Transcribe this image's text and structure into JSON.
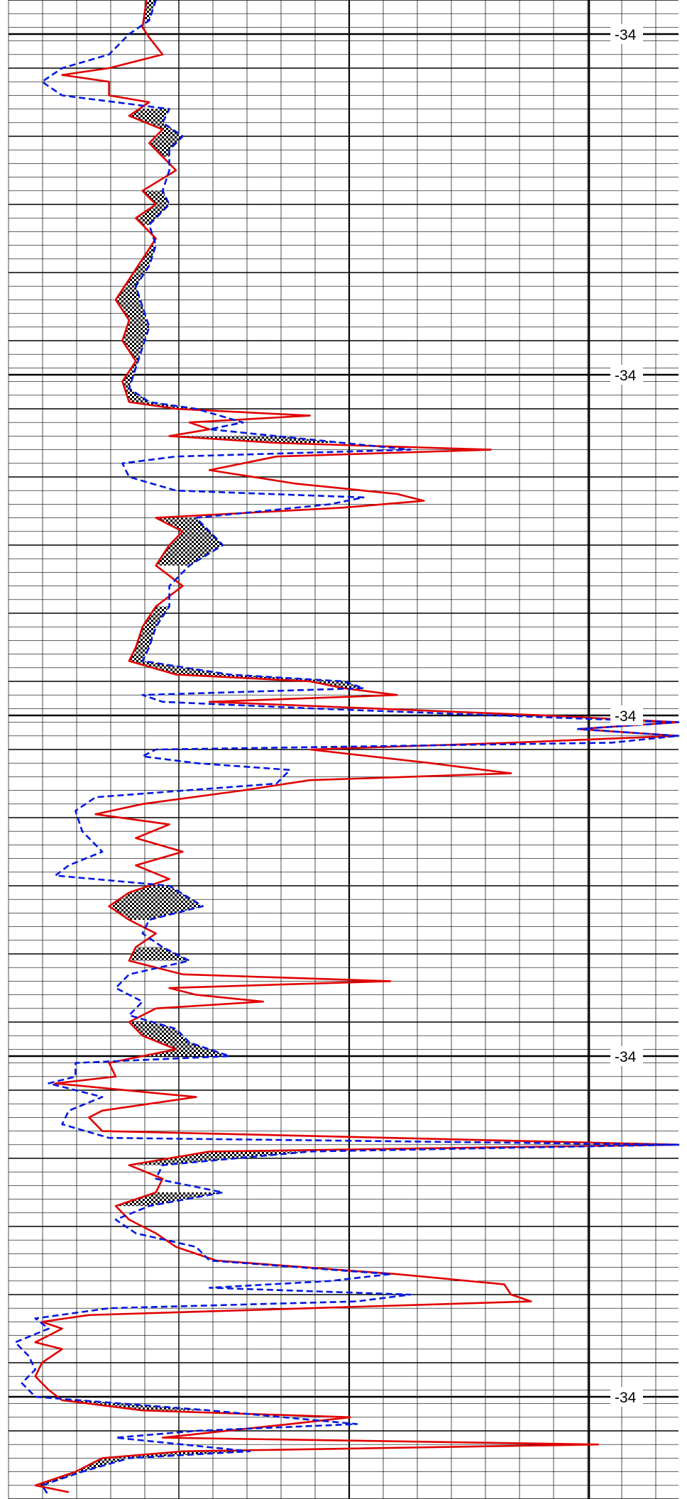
{
  "chart_data": {
    "type": "line",
    "title": "",
    "xlabel": "",
    "ylabel": "",
    "grid": true,
    "depth_tick_labels": [
      "-34",
      "-34",
      "-34",
      "-34",
      "-34"
    ],
    "depth_tick_depths": [
      0.5,
      5.5,
      10.5,
      15.5,
      20.5
    ],
    "depth_range": [
      0,
      22
    ],
    "curve_range": [
      0,
      100
    ],
    "series": [
      {
        "style": "solid",
        "color": "#e00000",
        "points": [
          [
            0,
            20.6
          ],
          [
            0.4,
            20
          ],
          [
            0.55,
            21
          ],
          [
            0.8,
            23
          ],
          [
            1.0,
            15
          ],
          [
            1.1,
            8
          ],
          [
            1.2,
            15
          ],
          [
            1.4,
            15
          ],
          [
            1.5,
            21
          ],
          [
            1.7,
            18
          ],
          [
            1.9,
            23
          ],
          [
            2.1,
            21
          ],
          [
            2.3,
            23
          ],
          [
            2.5,
            25
          ],
          [
            2.8,
            20
          ],
          [
            3.0,
            22
          ],
          [
            3.2,
            19
          ],
          [
            3.5,
            22
          ],
          [
            3.8,
            20
          ],
          [
            4.1,
            18
          ],
          [
            4.4,
            16
          ],
          [
            4.7,
            18
          ],
          [
            5.0,
            17
          ],
          [
            5.3,
            19
          ],
          [
            5.6,
            17
          ],
          [
            5.9,
            18
          ],
          [
            6.0,
            25
          ],
          [
            6.1,
            45
          ],
          [
            6.2,
            27
          ],
          [
            6.3,
            30
          ],
          [
            6.4,
            24
          ],
          [
            6.5,
            40
          ],
          [
            6.6,
            72
          ],
          [
            6.7,
            40
          ],
          [
            6.9,
            30
          ],
          [
            7.1,
            43
          ],
          [
            7.25,
            58
          ],
          [
            7.35,
            62
          ],
          [
            7.45,
            50
          ],
          [
            7.6,
            22
          ],
          [
            7.8,
            26
          ],
          [
            8.0,
            24
          ],
          [
            8.3,
            22
          ],
          [
            8.6,
            26
          ],
          [
            8.9,
            22
          ],
          [
            9.2,
            20
          ],
          [
            9.5,
            19
          ],
          [
            9.7,
            18
          ],
          [
            9.9,
            25
          ],
          [
            10.0,
            45
          ],
          [
            10.1,
            50
          ],
          [
            10.2,
            58
          ],
          [
            10.3,
            30
          ],
          [
            10.5,
            80
          ],
          [
            10.6,
            100
          ],
          [
            10.7,
            85
          ],
          [
            10.8,
            100
          ],
          [
            10.9,
            75
          ],
          [
            11.0,
            45
          ],
          [
            11.2,
            63
          ],
          [
            11.35,
            75
          ],
          [
            11.45,
            45
          ],
          [
            11.6,
            35
          ],
          [
            11.8,
            20
          ],
          [
            11.95,
            13
          ],
          [
            12.1,
            24
          ],
          [
            12.3,
            19
          ],
          [
            12.5,
            26
          ],
          [
            12.7,
            19
          ],
          [
            12.9,
            24
          ],
          [
            13.1,
            18
          ],
          [
            13.3,
            15
          ],
          [
            13.5,
            18
          ],
          [
            13.7,
            22
          ],
          [
            13.9,
            19
          ],
          [
            14.1,
            18
          ],
          [
            14.3,
            26
          ],
          [
            14.4,
            57
          ],
          [
            14.5,
            24
          ],
          [
            14.6,
            28
          ],
          [
            14.7,
            38
          ],
          [
            14.8,
            22
          ],
          [
            15.0,
            18
          ],
          [
            15.2,
            20
          ],
          [
            15.4,
            25
          ],
          [
            15.6,
            15
          ],
          [
            15.8,
            16
          ],
          [
            15.9,
            7
          ],
          [
            16.1,
            28
          ],
          [
            16.3,
            14
          ],
          [
            16.4,
            12
          ],
          [
            16.6,
            14
          ],
          [
            16.8,
            100
          ],
          [
            16.9,
            30
          ],
          [
            17.1,
            18
          ],
          [
            17.3,
            23
          ],
          [
            17.5,
            22
          ],
          [
            17.7,
            16
          ],
          [
            17.9,
            18
          ],
          [
            18.1,
            22
          ],
          [
            18.3,
            25
          ],
          [
            18.5,
            31
          ],
          [
            18.7,
            58
          ],
          [
            18.85,
            74
          ],
          [
            19.0,
            75
          ],
          [
            19.1,
            78
          ],
          [
            19.2,
            45
          ],
          [
            19.3,
            12
          ],
          [
            19.4,
            5
          ],
          [
            19.5,
            8
          ],
          [
            19.7,
            4
          ],
          [
            19.8,
            8
          ],
          [
            20.0,
            5
          ],
          [
            20.2,
            4
          ],
          [
            20.4,
            6
          ],
          [
            20.55,
            8
          ],
          [
            20.7,
            20
          ],
          [
            20.8,
            51
          ],
          [
            20.9,
            42
          ],
          [
            21.1,
            23
          ],
          [
            21.2,
            88
          ],
          [
            21.3,
            26
          ],
          [
            21.4,
            14
          ],
          [
            21.6,
            10
          ],
          [
            21.8,
            4
          ],
          [
            21.9,
            9
          ]
        ]
      },
      {
        "style": "dashed",
        "color": "#0018e0",
        "points": [
          [
            0,
            22
          ],
          [
            0.3,
            21
          ],
          [
            0.5,
            18
          ],
          [
            0.8,
            15
          ],
          [
            1.0,
            8
          ],
          [
            1.2,
            5
          ],
          [
            1.4,
            8
          ],
          [
            1.6,
            24
          ],
          [
            1.8,
            23
          ],
          [
            2.0,
            26
          ],
          [
            2.2,
            24
          ],
          [
            2.5,
            24
          ],
          [
            2.8,
            23
          ],
          [
            3.0,
            24
          ],
          [
            3.3,
            21
          ],
          [
            3.6,
            22
          ],
          [
            3.9,
            21
          ],
          [
            4.2,
            19
          ],
          [
            4.5,
            20
          ],
          [
            4.8,
            21
          ],
          [
            5.1,
            20
          ],
          [
            5.4,
            19
          ],
          [
            5.7,
            18
          ],
          [
            5.9,
            21
          ],
          [
            6.0,
            28
          ],
          [
            6.2,
            35
          ],
          [
            6.3,
            30
          ],
          [
            6.5,
            50
          ],
          [
            6.6,
            60
          ],
          [
            6.7,
            25
          ],
          [
            6.8,
            17
          ],
          [
            7.0,
            18
          ],
          [
            7.2,
            25
          ],
          [
            7.3,
            53
          ],
          [
            7.4,
            48
          ],
          [
            7.6,
            28
          ],
          [
            7.8,
            30
          ],
          [
            8.0,
            32
          ],
          [
            8.3,
            27
          ],
          [
            8.6,
            24
          ],
          [
            8.9,
            24
          ],
          [
            9.2,
            22
          ],
          [
            9.5,
            21
          ],
          [
            9.7,
            20
          ],
          [
            9.9,
            33
          ],
          [
            10.0,
            50
          ],
          [
            10.1,
            53
          ],
          [
            10.2,
            20
          ],
          [
            10.3,
            23
          ],
          [
            10.4,
            46
          ],
          [
            10.6,
            100
          ],
          [
            10.7,
            85
          ],
          [
            10.8,
            100
          ],
          [
            10.9,
            90
          ],
          [
            11.0,
            22
          ],
          [
            11.1,
            20
          ],
          [
            11.2,
            28
          ],
          [
            11.3,
            42
          ],
          [
            11.5,
            40
          ],
          [
            11.7,
            13
          ],
          [
            11.9,
            10
          ],
          [
            12.2,
            11
          ],
          [
            12.5,
            14
          ],
          [
            12.7,
            9
          ],
          [
            12.85,
            7
          ],
          [
            13.0,
            24
          ],
          [
            13.3,
            29
          ],
          [
            13.5,
            21
          ],
          [
            13.7,
            20
          ],
          [
            13.9,
            23
          ],
          [
            14.1,
            27
          ],
          [
            14.3,
            18
          ],
          [
            14.5,
            16
          ],
          [
            14.7,
            20
          ],
          [
            14.9,
            18
          ],
          [
            15.1,
            25
          ],
          [
            15.3,
            27
          ],
          [
            15.5,
            33
          ],
          [
            15.6,
            10
          ],
          [
            15.8,
            10
          ],
          [
            15.9,
            6
          ],
          [
            16.1,
            14
          ],
          [
            16.3,
            9
          ],
          [
            16.5,
            8
          ],
          [
            16.7,
            15
          ],
          [
            16.8,
            100
          ],
          [
            16.9,
            45
          ],
          [
            17.1,
            23
          ],
          [
            17.3,
            22
          ],
          [
            17.5,
            32
          ],
          [
            17.7,
            21
          ],
          [
            17.9,
            16
          ],
          [
            18.1,
            19
          ],
          [
            18.3,
            28
          ],
          [
            18.5,
            30
          ],
          [
            18.7,
            57
          ],
          [
            18.8,
            48
          ],
          [
            18.9,
            30
          ],
          [
            19.0,
            60
          ],
          [
            19.1,
            52
          ],
          [
            19.2,
            15
          ],
          [
            19.35,
            4
          ],
          [
            19.5,
            6
          ],
          [
            19.7,
            1
          ],
          [
            19.9,
            3
          ],
          [
            20.1,
            4
          ],
          [
            20.3,
            2
          ],
          [
            20.5,
            4
          ],
          [
            20.7,
            30
          ],
          [
            20.9,
            52
          ],
          [
            21.0,
            28
          ],
          [
            21.1,
            16
          ],
          [
            21.3,
            36
          ],
          [
            21.4,
            18
          ],
          [
            21.6,
            11
          ],
          [
            21.8,
            5
          ],
          [
            21.95,
            6
          ]
        ]
      }
    ]
  }
}
